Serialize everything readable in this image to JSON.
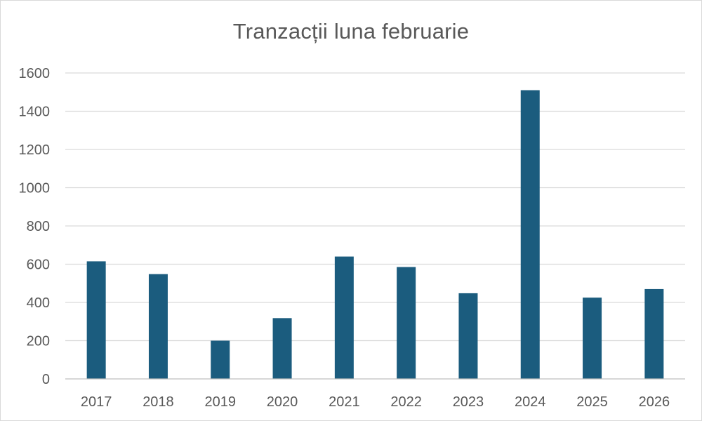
{
  "chart_data": {
    "type": "bar",
    "title": "Tranzacții luna februarie",
    "categories": [
      "2017",
      "2018",
      "2019",
      "2020",
      "2021",
      "2022",
      "2023",
      "2024",
      "2025",
      "2026"
    ],
    "values": [
      615,
      548,
      200,
      318,
      640,
      585,
      448,
      1510,
      425,
      470
    ],
    "ylim": [
      0,
      1600
    ],
    "yticks": [
      "0",
      "200",
      "400",
      "600",
      "800",
      "1000",
      "1200",
      "1400",
      "1600"
    ],
    "xlabel": "",
    "ylabel": "",
    "grid": true,
    "legend": "none",
    "bar_color": "#1b5c7e"
  }
}
